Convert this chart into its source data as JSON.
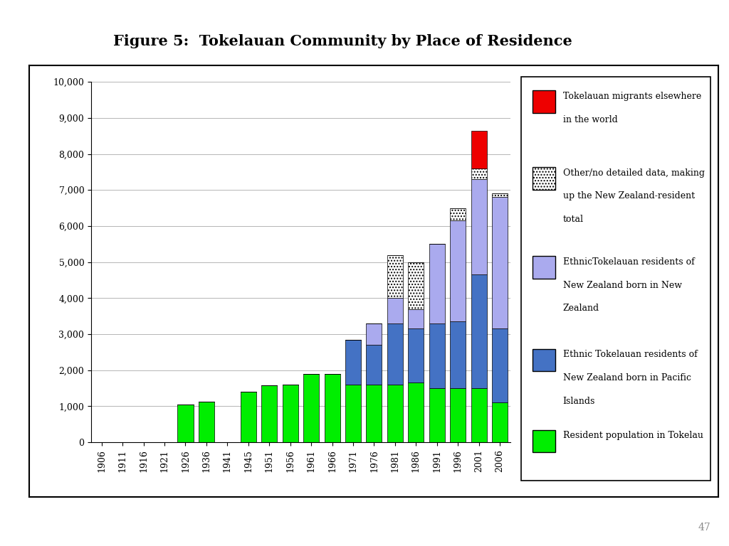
{
  "title": "Figure 5:  Tokelauan Community by Place of Residence",
  "years": [
    "1906",
    "1911",
    "1916",
    "1921",
    "1926",
    "1936",
    "1941",
    "1945",
    "1951",
    "1956",
    "1961",
    "1966",
    "1971",
    "1976",
    "1981",
    "1986",
    "1991",
    "1996",
    "2001",
    "2006"
  ],
  "resident_tokelau": [
    0,
    0,
    0,
    0,
    1050,
    1130,
    0,
    1400,
    1570,
    1600,
    1900,
    1900,
    1600,
    1600,
    1600,
    1650,
    1500,
    1500,
    1500,
    1100
  ],
  "pacific_born": [
    0,
    0,
    0,
    0,
    0,
    0,
    0,
    0,
    0,
    0,
    0,
    0,
    1250,
    1100,
    1700,
    1500,
    1800,
    1850,
    3150,
    2050
  ],
  "nz_born": [
    0,
    0,
    0,
    0,
    0,
    0,
    0,
    0,
    0,
    0,
    0,
    0,
    0,
    600,
    700,
    550,
    2200,
    2800,
    2650,
    3650
  ],
  "other_nz": [
    0,
    0,
    0,
    0,
    0,
    0,
    0,
    0,
    0,
    0,
    0,
    0,
    0,
    0,
    1200,
    1300,
    0,
    350,
    300,
    100
  ],
  "migrants": [
    0,
    0,
    0,
    0,
    0,
    0,
    0,
    0,
    0,
    0,
    0,
    0,
    0,
    0,
    0,
    0,
    0,
    0,
    1050,
    0
  ],
  "color_resident": "#00EE00",
  "color_pacific": "#4472C4",
  "color_nz_born": "#AAAAEE",
  "color_other_nz": "#FFFFFF",
  "color_migrants": "#EE0000",
  "legend_labels_migrants": "Tokelauan migrants elsewhere\nin the world",
  "legend_labels_other": "Other/no detailed data, making\nup the New Zealand-resident\ntotal",
  "legend_labels_nz": "EthnicTokelauan residents of\nNew Zealand born in New\nZealand",
  "legend_labels_pacific": "Ethnic Tokelauan residents of\nNew Zealand born in Pacific\nIslands",
  "legend_labels_resident": "Resident population in Tokelau",
  "ylim_max": 10000,
  "page_number": "47"
}
